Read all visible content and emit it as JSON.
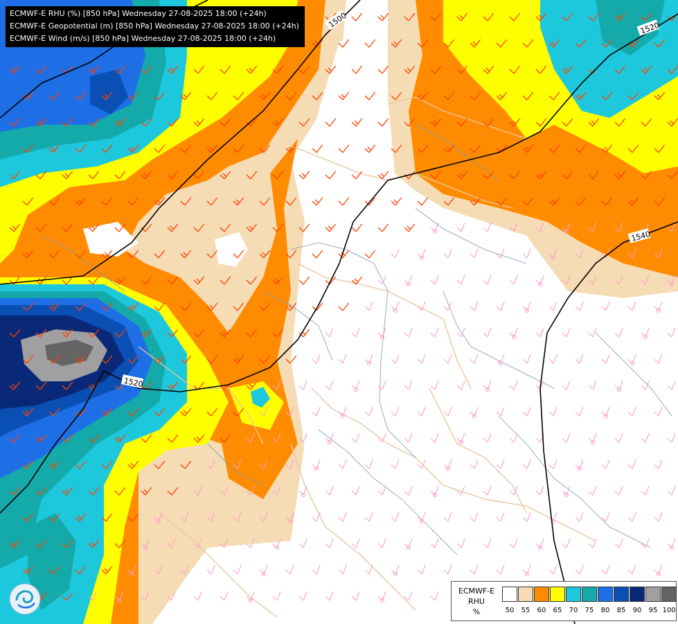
{
  "title_lines": [
    "ECMWF-E RHU (%) [850 hPa] Wednesday 27-08-2025 18:00 (+24h)",
    "ECMWF-E Geopotential (m) [850 hPa] Wednesday 27-08-2025 18:00 (+24h)",
    "ECMWF-E Wind (m/s) [850 hPa] Wednesday 27-08-2025 18:00 (+24h)"
  ],
  "legend": {
    "label_lines": [
      "ECMWF-E",
      "RHU",
      "%"
    ],
    "ticks": [
      "50",
      "55",
      "60",
      "65",
      "70",
      "75",
      "80",
      "85",
      "90",
      "95",
      "100"
    ],
    "colors": [
      "#ffffff",
      "#f5dcb4",
      "#ff8c00",
      "#ffff00",
      "#1ec8dc",
      "#14aaaa",
      "#1e6ee6",
      "#0a50b4",
      "#0a2878",
      "#a0a0a0",
      "#646464"
    ]
  },
  "contour_labels": [
    "1500",
    "1520",
    "1540",
    "1520"
  ],
  "colors": {
    "border": "#e6c8a0",
    "river": "#7a96b4",
    "barb_strong": "#ff4000",
    "barb_weak": "#ff9ec8",
    "contour": "#000000"
  },
  "logo_icon": "ecmwf-logo-icon"
}
